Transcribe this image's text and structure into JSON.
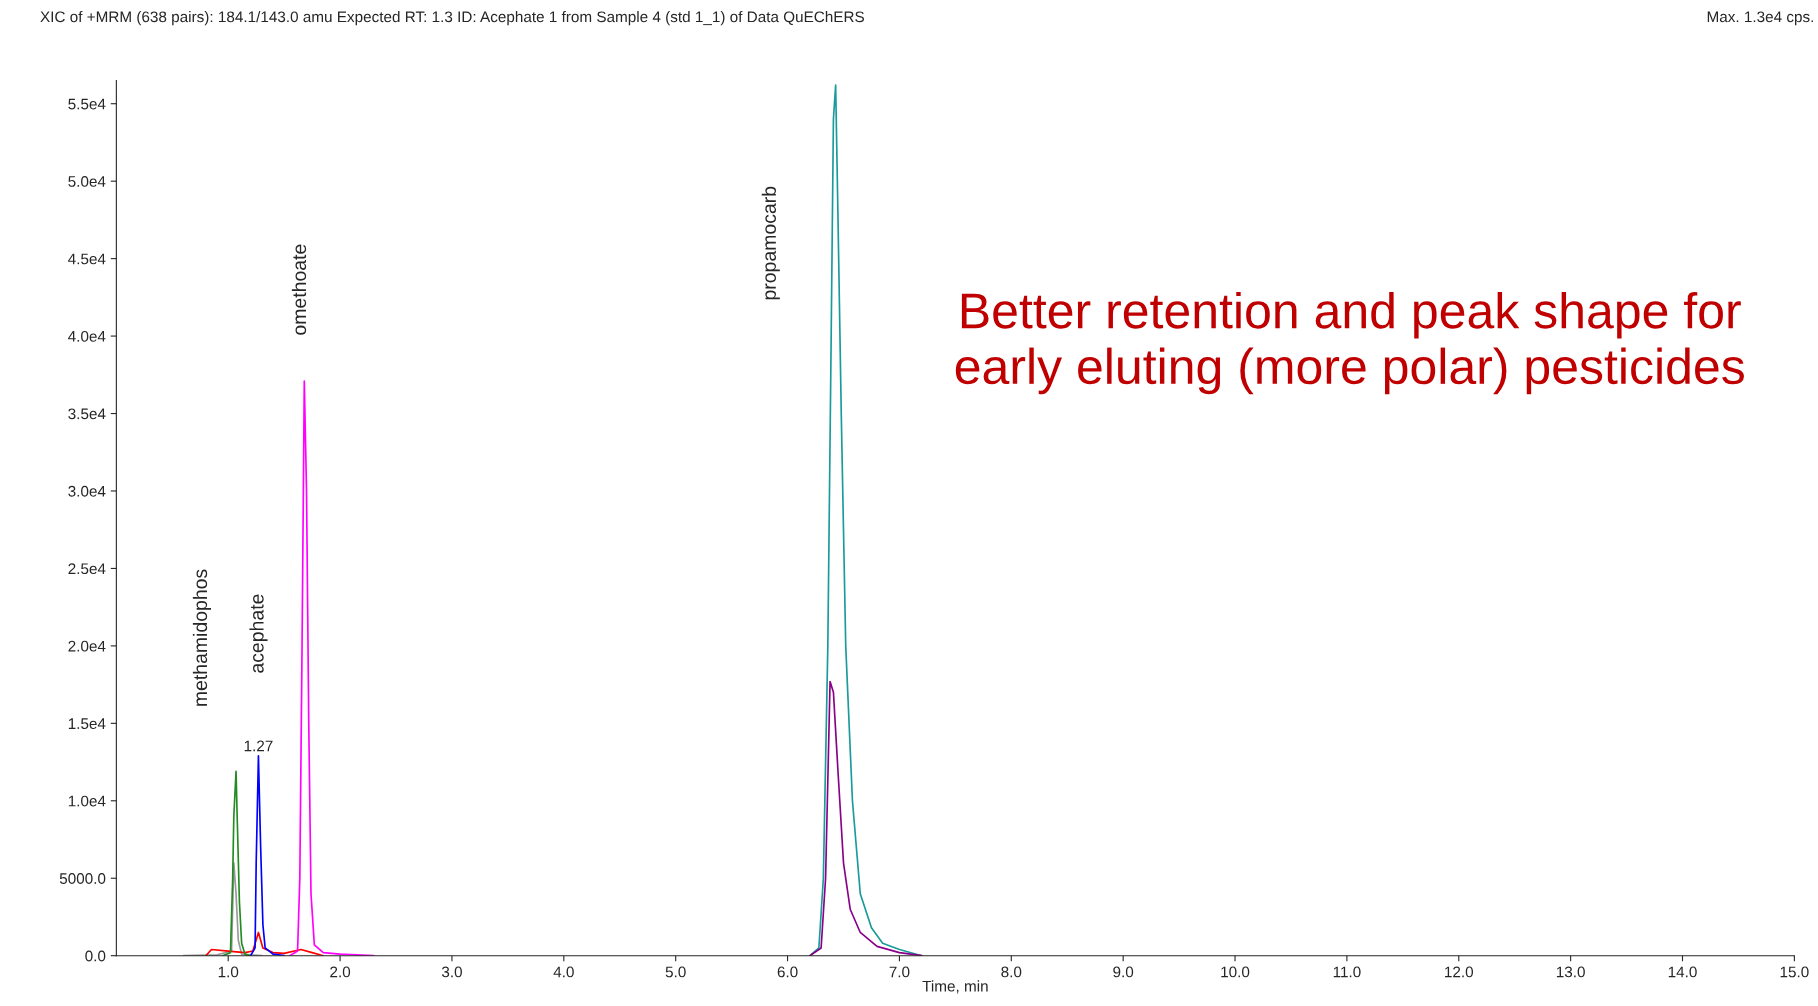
{
  "chart_data": {
    "type": "line",
    "title": "XIC of +MRM (638 pairs): 184.1/143.0 amu Expected RT: 1.3 ID: Acephate 1 from Sample 4 (std 1_1) of Data QuEChERS",
    "xlabel": "Time, min",
    "xlim": [
      0,
      15
    ],
    "ylim": [
      0,
      56500
    ],
    "xticks": [
      {
        "value": 1,
        "label": "1.0"
      },
      {
        "value": 2,
        "label": "2.0"
      },
      {
        "value": 3,
        "label": "3.0"
      },
      {
        "value": 4,
        "label": "4.0"
      },
      {
        "value": 5,
        "label": "5.0"
      },
      {
        "value": 6,
        "label": "6.0"
      },
      {
        "value": 7,
        "label": "7.0"
      },
      {
        "value": 8,
        "label": "8.0"
      },
      {
        "value": 9,
        "label": "9.0"
      },
      {
        "value": 10,
        "label": "10.0"
      },
      {
        "value": 11,
        "label": "11.0"
      },
      {
        "value": 12,
        "label": "12.0"
      },
      {
        "value": 13,
        "label": "13.0"
      },
      {
        "value": 14,
        "label": "14.0"
      },
      {
        "value": 15,
        "label": "15.0"
      }
    ],
    "yticks": [
      {
        "value": 0,
        "label": "0.0"
      },
      {
        "value": 5000,
        "label": "5000.0"
      },
      {
        "value": 10000,
        "label": "1.0e4"
      },
      {
        "value": 15000,
        "label": "1.5e4"
      },
      {
        "value": 20000,
        "label": "2.0e4"
      },
      {
        "value": 25000,
        "label": "2.5e4"
      },
      {
        "value": 30000,
        "label": "3.0e4"
      },
      {
        "value": 35000,
        "label": "3.5e4"
      },
      {
        "value": 40000,
        "label": "4.0e4"
      },
      {
        "value": 45000,
        "label": "4.5e4"
      },
      {
        "value": 50000,
        "label": "5.0e4"
      },
      {
        "value": 55000,
        "label": "5.5e4"
      }
    ],
    "grid": false,
    "legend": false,
    "marker": "none",
    "line_style": "solid",
    "series": [
      {
        "color": "#999999",
        "x": [
          0.6,
          0.9,
          1.03,
          1.05,
          1.07,
          1.09,
          1.12,
          1.3
        ],
        "values": [
          0,
          50,
          300,
          6000,
          4000,
          1000,
          100,
          0
        ]
      },
      {
        "color": "#ff0000",
        "x": [
          0.8,
          0.85,
          1.0,
          1.15,
          1.22,
          1.27,
          1.31,
          1.4,
          1.5,
          1.65,
          1.75,
          1.85
        ],
        "values": [
          0,
          400,
          300,
          200,
          300,
          1500,
          500,
          200,
          150,
          400,
          200,
          0
        ]
      },
      {
        "color": "#228b22",
        "x": [
          0.95,
          1.02,
          1.04,
          1.05,
          1.07,
          1.08,
          1.1,
          1.12,
          1.15,
          1.2
        ],
        "values": [
          0,
          200,
          5000,
          9000,
          11900,
          9000,
          3500,
          800,
          100,
          0
        ]
      },
      {
        "color": "#0000ff",
        "x": [
          1.2,
          1.24,
          1.25,
          1.27,
          1.29,
          1.31,
          1.33,
          1.4,
          1.5
        ],
        "values": [
          0,
          500,
          6000,
          12900,
          7000,
          2000,
          500,
          100,
          0
        ]
      },
      {
        "color": "#ff00ff",
        "x": [
          1.55,
          1.62,
          1.64,
          1.66,
          1.68,
          1.7,
          1.72,
          1.74,
          1.77,
          1.85,
          2.0,
          2.3
        ],
        "values": [
          0,
          300,
          5000,
          20000,
          37100,
          30000,
          15000,
          4000,
          700,
          200,
          100,
          0
        ]
      },
      {
        "color": "#1a9a9a",
        "x": [
          6.2,
          6.28,
          6.32,
          6.36,
          6.39,
          6.41,
          6.43,
          6.45,
          6.48,
          6.52,
          6.58,
          6.65,
          6.75,
          6.85,
          7.0,
          7.2
        ],
        "values": [
          0,
          500,
          5000,
          20000,
          40000,
          54000,
          56200,
          48000,
          35000,
          20000,
          10000,
          4000,
          1800,
          800,
          400,
          0
        ]
      },
      {
        "color": "#8b008b",
        "x": [
          6.2,
          6.3,
          6.34,
          6.38,
          6.41,
          6.45,
          6.5,
          6.56,
          6.65,
          6.8,
          7.0,
          7.2
        ],
        "values": [
          0,
          500,
          5000,
          17700,
          17000,
          12000,
          6000,
          3000,
          1500,
          600,
          200,
          0
        ]
      }
    ],
    "annotations": [
      "methamidophos",
      "acephate",
      "omethoate",
      "propamocarb",
      {
        "text": "1.27",
        "x": 1.27,
        "y": 13000
      },
      "Max. 1.3e4 cps.",
      "Better retention and peak shape for\nearly eluting (more polar) pesticides"
    ]
  }
}
